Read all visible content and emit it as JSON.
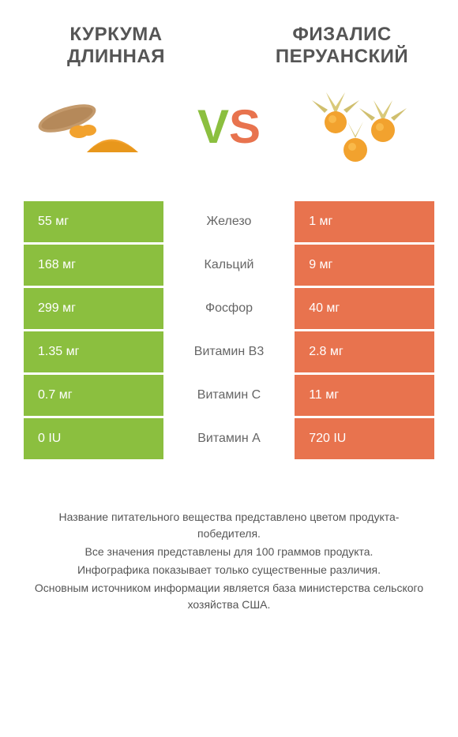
{
  "colors": {
    "green": "#8bbf3f",
    "orange": "#e8734e",
    "text": "#555"
  },
  "left_product": {
    "title": "КУРКУМА ДЛИННАЯ"
  },
  "right_product": {
    "title": "ФИЗАЛИС ПЕРУАНСКИЙ"
  },
  "vs_label": {
    "v": "V",
    "s": "S"
  },
  "rows": [
    {
      "left": "55 мг",
      "label": "Железо",
      "right": "1 мг",
      "winner": "green"
    },
    {
      "left": "168 мг",
      "label": "Кальций",
      "right": "9 мг",
      "winner": "green"
    },
    {
      "left": "299 мг",
      "label": "Фосфор",
      "right": "40 мг",
      "winner": "green"
    },
    {
      "left": "1.35 мг",
      "label": "Витамин B3",
      "right": "2.8 мг",
      "winner": "orange"
    },
    {
      "left": "0.7 мг",
      "label": "Витамин C",
      "right": "11 мг",
      "winner": "orange"
    },
    {
      "left": "0 IU",
      "label": "Витамин A",
      "right": "720 IU",
      "winner": "orange"
    }
  ],
  "footer": [
    "Название питательного вещества представлено цветом продукта-победителя.",
    "Все значения представлены для 100 граммов продукта.",
    "Инфографика показывает только существенные различия.",
    "Основным источником информации является база министерства сельского хозяйства США."
  ]
}
